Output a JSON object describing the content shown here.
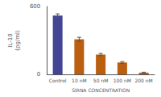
{
  "chart_data": {
    "type": "bar",
    "categories": [
      "Control",
      "10 nM",
      "50 nM",
      "100 nM",
      "200 nM"
    ],
    "values": [
      520,
      310,
      175,
      105,
      15
    ],
    "errors": [
      15,
      18,
      10,
      8,
      4
    ],
    "colors": [
      "#444494",
      "#b95f0f",
      "#b95f0f",
      "#b95f0f",
      "#b95f0f"
    ],
    "xlabel": "SIRNA CONCENTRATION",
    "ylabel": "IL-10\n(pg/ml)",
    "ylim": [
      0,
      600
    ],
    "yticks": [
      0,
      600
    ],
    "grid": false
  }
}
